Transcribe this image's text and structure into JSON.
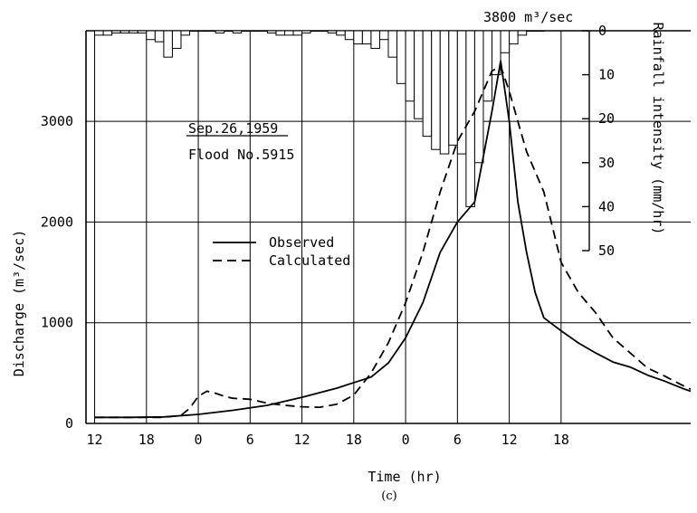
{
  "chart_data": {
    "type": "line",
    "caption": "(c)",
    "xlabel": "Time (hr)",
    "x_tick_labels": [
      "12",
      "18",
      "0",
      "6",
      "12",
      "18",
      "0",
      "6",
      "12",
      "18"
    ],
    "x_range_hours": [
      -1,
      69
    ],
    "y_left": {
      "label": "Discharge (m³/sec)",
      "ticks": [
        0,
        1000,
        2000,
        3000
      ],
      "range": [
        0,
        3900
      ]
    },
    "y_right": {
      "label": "Rainfall intensity (mm/hr)",
      "ticks": [
        0,
        10,
        20,
        30,
        40,
        50
      ],
      "range": [
        0,
        50
      ],
      "inverted": true
    },
    "grid": true,
    "annotations": {
      "date": "Sep.26,1959",
      "flood": "Flood No.5915",
      "peak": "3800 m³/sec"
    },
    "legend": {
      "observed": "Observed",
      "calculated": "Calculated",
      "placement": "center-left"
    },
    "series": [
      {
        "name": "Observed",
        "style": "solid",
        "points": [
          [
            0,
            60
          ],
          [
            4,
            60
          ],
          [
            8,
            65
          ],
          [
            12,
            90
          ],
          [
            16,
            130
          ],
          [
            20,
            180
          ],
          [
            24,
            260
          ],
          [
            28,
            350
          ],
          [
            32,
            460
          ],
          [
            34,
            600
          ],
          [
            36,
            850
          ],
          [
            38,
            1200
          ],
          [
            40,
            1700
          ],
          [
            42,
            2000
          ],
          [
            44,
            2200
          ],
          [
            46,
            3100
          ],
          [
            47,
            3600
          ],
          [
            48,
            3000
          ],
          [
            49,
            2200
          ],
          [
            50,
            1700
          ],
          [
            51,
            1300
          ],
          [
            52,
            1050
          ],
          [
            54,
            920
          ],
          [
            56,
            800
          ],
          [
            58,
            700
          ],
          [
            60,
            610
          ],
          [
            62,
            560
          ],
          [
            64,
            480
          ],
          [
            66,
            420
          ],
          [
            68,
            350
          ],
          [
            69,
            320
          ]
        ]
      },
      {
        "name": "Calculated",
        "style": "dashed",
        "points": [
          [
            0,
            60
          ],
          [
            4,
            60
          ],
          [
            8,
            60
          ],
          [
            10,
            80
          ],
          [
            11,
            150
          ],
          [
            12,
            270
          ],
          [
            13,
            320
          ],
          [
            14,
            300
          ],
          [
            15,
            270
          ],
          [
            16,
            250
          ],
          [
            18,
            240
          ],
          [
            20,
            200
          ],
          [
            22,
            180
          ],
          [
            24,
            165
          ],
          [
            26,
            160
          ],
          [
            28,
            190
          ],
          [
            30,
            280
          ],
          [
            32,
            500
          ],
          [
            34,
            800
          ],
          [
            36,
            1200
          ],
          [
            38,
            1700
          ],
          [
            40,
            2300
          ],
          [
            42,
            2800
          ],
          [
            44,
            3100
          ],
          [
            46,
            3500
          ],
          [
            47,
            3550
          ],
          [
            48,
            3300
          ],
          [
            49,
            3000
          ],
          [
            50,
            2700
          ],
          [
            52,
            2300
          ],
          [
            54,
            1600
          ],
          [
            56,
            1300
          ],
          [
            58,
            1100
          ],
          [
            60,
            850
          ],
          [
            62,
            700
          ],
          [
            64,
            550
          ],
          [
            66,
            470
          ],
          [
            68,
            380
          ],
          [
            69,
            340
          ]
        ]
      }
    ],
    "rainfall": {
      "unit": "mm/hr",
      "start_hour": 0,
      "step_hours": 1,
      "values": [
        1,
        1,
        0.5,
        0.5,
        0.5,
        0.5,
        2,
        2.5,
        6,
        4,
        1,
        0,
        0,
        0,
        0.5,
        0,
        0.5,
        0,
        0,
        0,
        0.5,
        1,
        1,
        1,
        0.5,
        0,
        0,
        0.5,
        1,
        2,
        3,
        3,
        4,
        2,
        6,
        12,
        16,
        20,
        24,
        27,
        28,
        26,
        28,
        40,
        30,
        16,
        10,
        5,
        3,
        1,
        0,
        0
      ]
    }
  }
}
